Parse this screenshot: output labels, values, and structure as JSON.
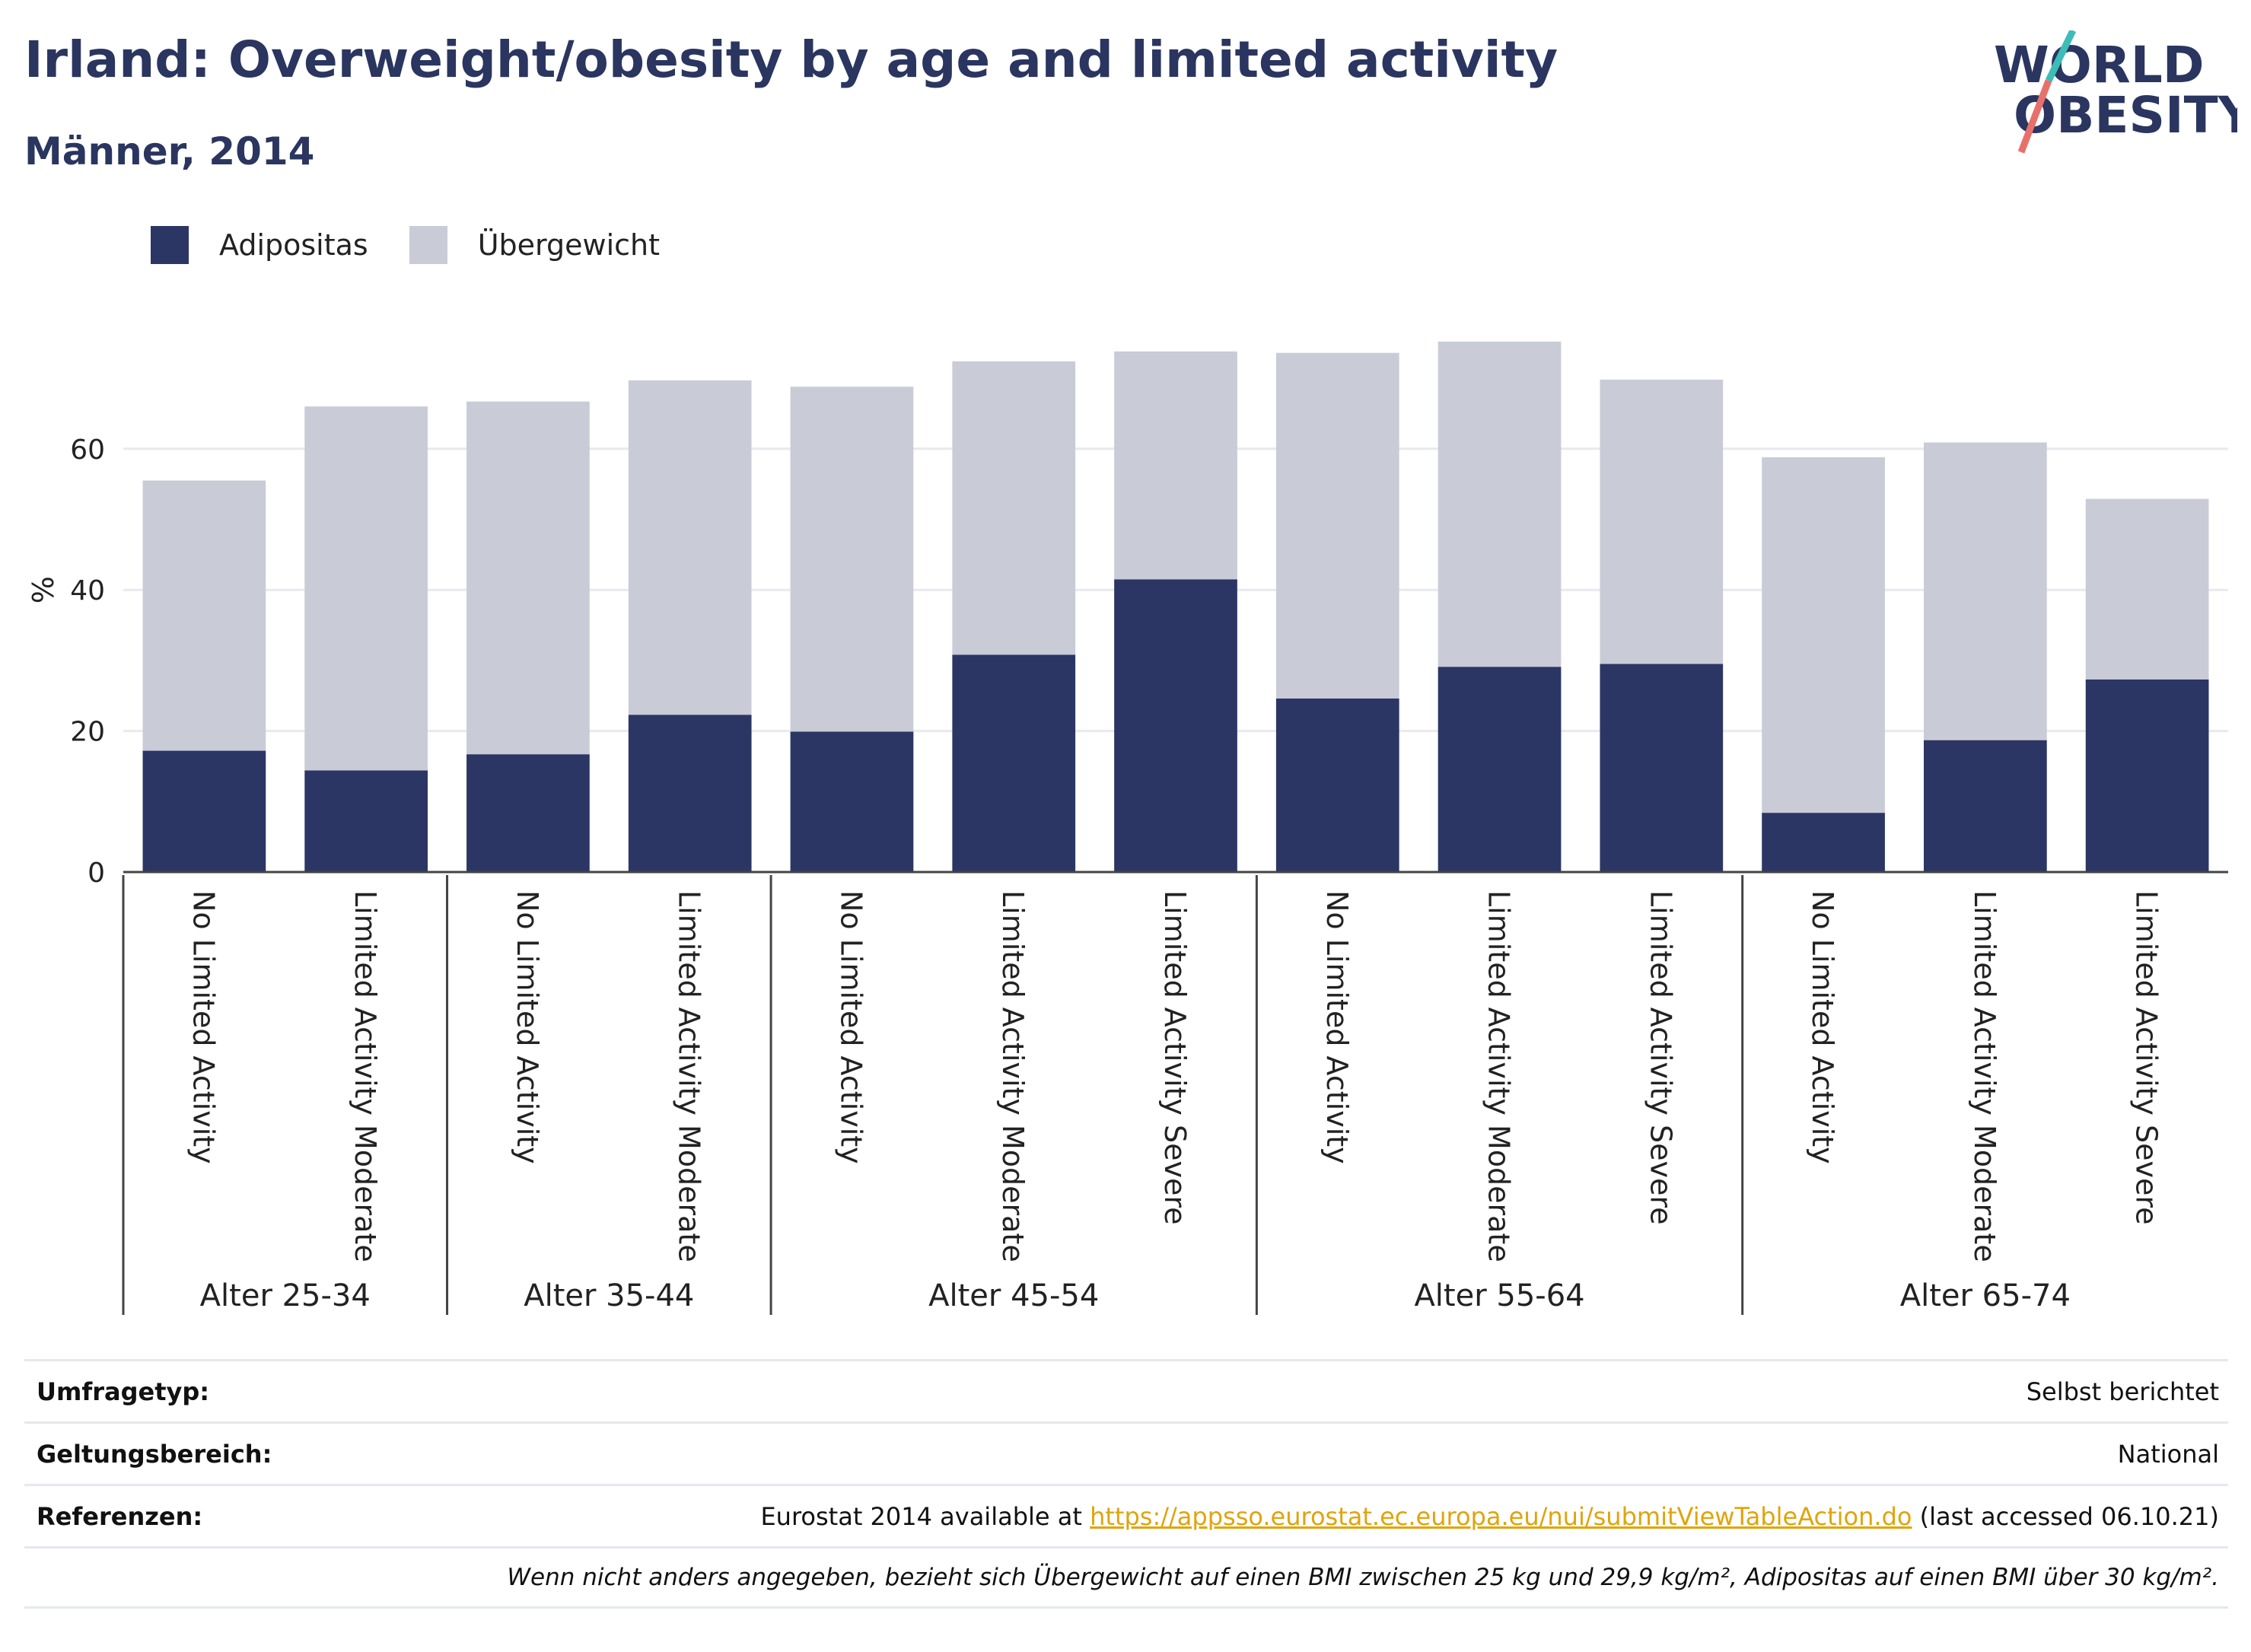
{
  "header": {
    "title": "Irland: Overweight/obesity by age and limited activity",
    "subtitle": "Männer, 2014"
  },
  "logo": {
    "line1": "WORLD",
    "line2": "OBESITY"
  },
  "info": {
    "rows": [
      {
        "label": "Umfragetyp:",
        "value": "Selbst berichtet"
      },
      {
        "label": "Geltungsbereich:",
        "value": "National"
      }
    ],
    "references": {
      "label": "Referenzen:",
      "prefix": "Eurostat 2014 available at ",
      "link": "https://appsso.eurostat.ec.europa.eu/nui/submitViewTableAction.do",
      "suffix": " (last accessed 06.10.21)"
    },
    "note": "Wenn nicht anders angegeben, bezieht sich Übergewicht auf einen BMI zwischen 25 kg und 29,9 kg/m², Adipositas auf einen BMI über 30 kg/m²."
  },
  "colors": {
    "obesity": "#2b3664",
    "overweight": "#c9cbd7",
    "grid": "#e9e9ee",
    "axis": "#444444",
    "accent_teal": "#3dbcb8",
    "accent_red": "#e8706a"
  },
  "chart_data": {
    "type": "bar",
    "stacked": true,
    "ylabel": "%",
    "ylim": [
      0,
      80
    ],
    "yticks": [
      0,
      20,
      40,
      60
    ],
    "grid": true,
    "legend_position": "top-left",
    "groups": [
      {
        "label": "Alter 25-34",
        "categories": [
          "No Limited Activity",
          "Limited Activity Moderate"
        ]
      },
      {
        "label": "Alter 35-44",
        "categories": [
          "No Limited Activity",
          "Limited Activity Moderate"
        ]
      },
      {
        "label": "Alter 45-54",
        "categories": [
          "No Limited Activity",
          "Limited Activity Moderate",
          "Limited Activity Severe"
        ]
      },
      {
        "label": "Alter 55-64",
        "categories": [
          "No Limited Activity",
          "Limited Activity Moderate",
          "Limited Activity Severe"
        ]
      },
      {
        "label": "Alter 65-74",
        "categories": [
          "No Limited Activity",
          "Limited Activity Moderate",
          "Limited Activity Severe"
        ]
      }
    ],
    "series": [
      {
        "name": "Adipositas",
        "color": "#2b3664",
        "values": [
          17.2,
          14.4,
          16.7,
          22.3,
          19.9,
          30.8,
          41.5,
          24.6,
          29.1,
          29.5,
          8.4,
          18.7,
          27.3
        ]
      },
      {
        "name": "Übergewicht",
        "color": "#c9cbd7",
        "values": [
          38.3,
          51.6,
          50.0,
          47.4,
          48.9,
          41.6,
          32.3,
          49.0,
          46.1,
          40.3,
          50.4,
          42.2,
          25.6
        ]
      }
    ]
  }
}
